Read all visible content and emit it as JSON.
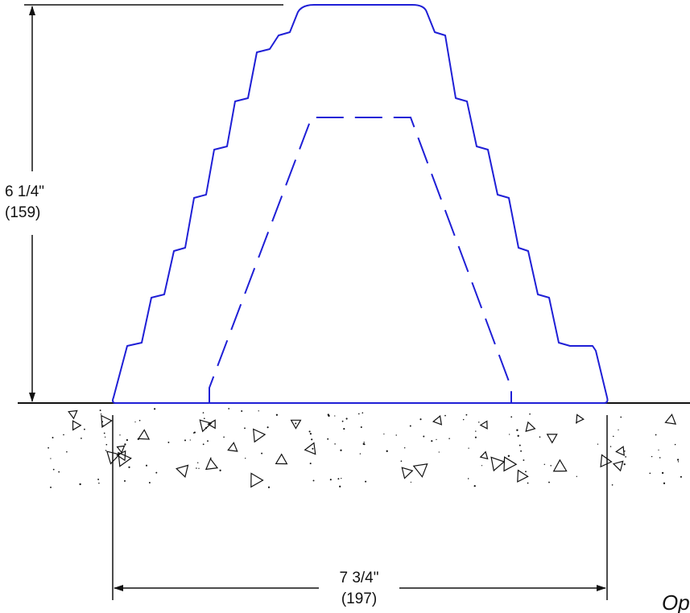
{
  "height_dimension": {
    "imperial": "6 1/4\"",
    "metric": "(159)"
  },
  "width_dimension": {
    "imperial": "7 3/4\"",
    "metric": "(197)"
  },
  "corner_label": "Op",
  "colors": {
    "profile": "#1f1fd6",
    "dimension_lines": "#111111",
    "ground": "#111111"
  }
}
